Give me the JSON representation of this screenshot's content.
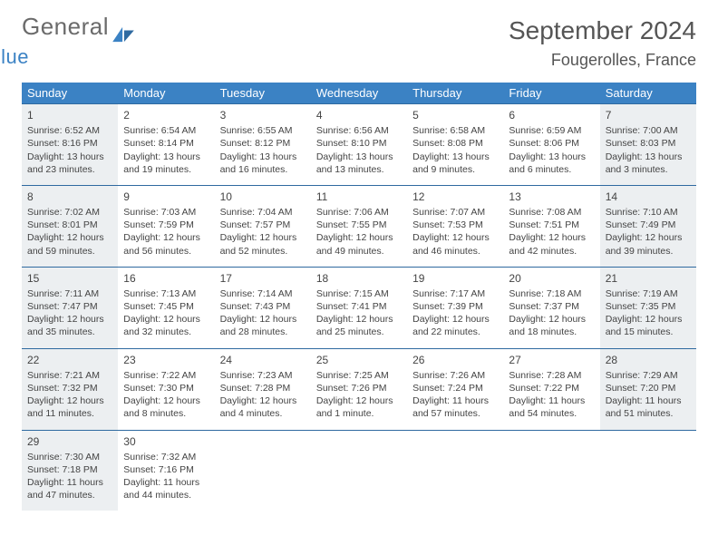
{
  "brand": {
    "part1": "General",
    "part2": "Blue",
    "color1": "#6b6b6b",
    "color2": "#3b82c4"
  },
  "title": "September 2024",
  "location": "Fougerolles, France",
  "header_bg": "#3b82c4",
  "row_border": "#2f6aa0",
  "shade_bg": "#eceff1",
  "weekdays": [
    "Sunday",
    "Monday",
    "Tuesday",
    "Wednesday",
    "Thursday",
    "Friday",
    "Saturday"
  ],
  "weeks": [
    [
      {
        "n": "1",
        "sr": "Sunrise: 6:52 AM",
        "ss": "Sunset: 8:16 PM",
        "dl": "Daylight: 13 hours and 23 minutes.",
        "shade": true
      },
      {
        "n": "2",
        "sr": "Sunrise: 6:54 AM",
        "ss": "Sunset: 8:14 PM",
        "dl": "Daylight: 13 hours and 19 minutes.",
        "shade": false
      },
      {
        "n": "3",
        "sr": "Sunrise: 6:55 AM",
        "ss": "Sunset: 8:12 PM",
        "dl": "Daylight: 13 hours and 16 minutes.",
        "shade": false
      },
      {
        "n": "4",
        "sr": "Sunrise: 6:56 AM",
        "ss": "Sunset: 8:10 PM",
        "dl": "Daylight: 13 hours and 13 minutes.",
        "shade": false
      },
      {
        "n": "5",
        "sr": "Sunrise: 6:58 AM",
        "ss": "Sunset: 8:08 PM",
        "dl": "Daylight: 13 hours and 9 minutes.",
        "shade": false
      },
      {
        "n": "6",
        "sr": "Sunrise: 6:59 AM",
        "ss": "Sunset: 8:06 PM",
        "dl": "Daylight: 13 hours and 6 minutes.",
        "shade": false
      },
      {
        "n": "7",
        "sr": "Sunrise: 7:00 AM",
        "ss": "Sunset: 8:03 PM",
        "dl": "Daylight: 13 hours and 3 minutes.",
        "shade": true
      }
    ],
    [
      {
        "n": "8",
        "sr": "Sunrise: 7:02 AM",
        "ss": "Sunset: 8:01 PM",
        "dl": "Daylight: 12 hours and 59 minutes.",
        "shade": true
      },
      {
        "n": "9",
        "sr": "Sunrise: 7:03 AM",
        "ss": "Sunset: 7:59 PM",
        "dl": "Daylight: 12 hours and 56 minutes.",
        "shade": false
      },
      {
        "n": "10",
        "sr": "Sunrise: 7:04 AM",
        "ss": "Sunset: 7:57 PM",
        "dl": "Daylight: 12 hours and 52 minutes.",
        "shade": false
      },
      {
        "n": "11",
        "sr": "Sunrise: 7:06 AM",
        "ss": "Sunset: 7:55 PM",
        "dl": "Daylight: 12 hours and 49 minutes.",
        "shade": false
      },
      {
        "n": "12",
        "sr": "Sunrise: 7:07 AM",
        "ss": "Sunset: 7:53 PM",
        "dl": "Daylight: 12 hours and 46 minutes.",
        "shade": false
      },
      {
        "n": "13",
        "sr": "Sunrise: 7:08 AM",
        "ss": "Sunset: 7:51 PM",
        "dl": "Daylight: 12 hours and 42 minutes.",
        "shade": false
      },
      {
        "n": "14",
        "sr": "Sunrise: 7:10 AM",
        "ss": "Sunset: 7:49 PM",
        "dl": "Daylight: 12 hours and 39 minutes.",
        "shade": true
      }
    ],
    [
      {
        "n": "15",
        "sr": "Sunrise: 7:11 AM",
        "ss": "Sunset: 7:47 PM",
        "dl": "Daylight: 12 hours and 35 minutes.",
        "shade": true
      },
      {
        "n": "16",
        "sr": "Sunrise: 7:13 AM",
        "ss": "Sunset: 7:45 PM",
        "dl": "Daylight: 12 hours and 32 minutes.",
        "shade": false
      },
      {
        "n": "17",
        "sr": "Sunrise: 7:14 AM",
        "ss": "Sunset: 7:43 PM",
        "dl": "Daylight: 12 hours and 28 minutes.",
        "shade": false
      },
      {
        "n": "18",
        "sr": "Sunrise: 7:15 AM",
        "ss": "Sunset: 7:41 PM",
        "dl": "Daylight: 12 hours and 25 minutes.",
        "shade": false
      },
      {
        "n": "19",
        "sr": "Sunrise: 7:17 AM",
        "ss": "Sunset: 7:39 PM",
        "dl": "Daylight: 12 hours and 22 minutes.",
        "shade": false
      },
      {
        "n": "20",
        "sr": "Sunrise: 7:18 AM",
        "ss": "Sunset: 7:37 PM",
        "dl": "Daylight: 12 hours and 18 minutes.",
        "shade": false
      },
      {
        "n": "21",
        "sr": "Sunrise: 7:19 AM",
        "ss": "Sunset: 7:35 PM",
        "dl": "Daylight: 12 hours and 15 minutes.",
        "shade": true
      }
    ],
    [
      {
        "n": "22",
        "sr": "Sunrise: 7:21 AM",
        "ss": "Sunset: 7:32 PM",
        "dl": "Daylight: 12 hours and 11 minutes.",
        "shade": true
      },
      {
        "n": "23",
        "sr": "Sunrise: 7:22 AM",
        "ss": "Sunset: 7:30 PM",
        "dl": "Daylight: 12 hours and 8 minutes.",
        "shade": false
      },
      {
        "n": "24",
        "sr": "Sunrise: 7:23 AM",
        "ss": "Sunset: 7:28 PM",
        "dl": "Daylight: 12 hours and 4 minutes.",
        "shade": false
      },
      {
        "n": "25",
        "sr": "Sunrise: 7:25 AM",
        "ss": "Sunset: 7:26 PM",
        "dl": "Daylight: 12 hours and 1 minute.",
        "shade": false
      },
      {
        "n": "26",
        "sr": "Sunrise: 7:26 AM",
        "ss": "Sunset: 7:24 PM",
        "dl": "Daylight: 11 hours and 57 minutes.",
        "shade": false
      },
      {
        "n": "27",
        "sr": "Sunrise: 7:28 AM",
        "ss": "Sunset: 7:22 PM",
        "dl": "Daylight: 11 hours and 54 minutes.",
        "shade": false
      },
      {
        "n": "28",
        "sr": "Sunrise: 7:29 AM",
        "ss": "Sunset: 7:20 PM",
        "dl": "Daylight: 11 hours and 51 minutes.",
        "shade": true
      }
    ],
    [
      {
        "n": "29",
        "sr": "Sunrise: 7:30 AM",
        "ss": "Sunset: 7:18 PM",
        "dl": "Daylight: 11 hours and 47 minutes.",
        "shade": true
      },
      {
        "n": "30",
        "sr": "Sunrise: 7:32 AM",
        "ss": "Sunset: 7:16 PM",
        "dl": "Daylight: 11 hours and 44 minutes.",
        "shade": false
      },
      null,
      null,
      null,
      null,
      null
    ]
  ]
}
